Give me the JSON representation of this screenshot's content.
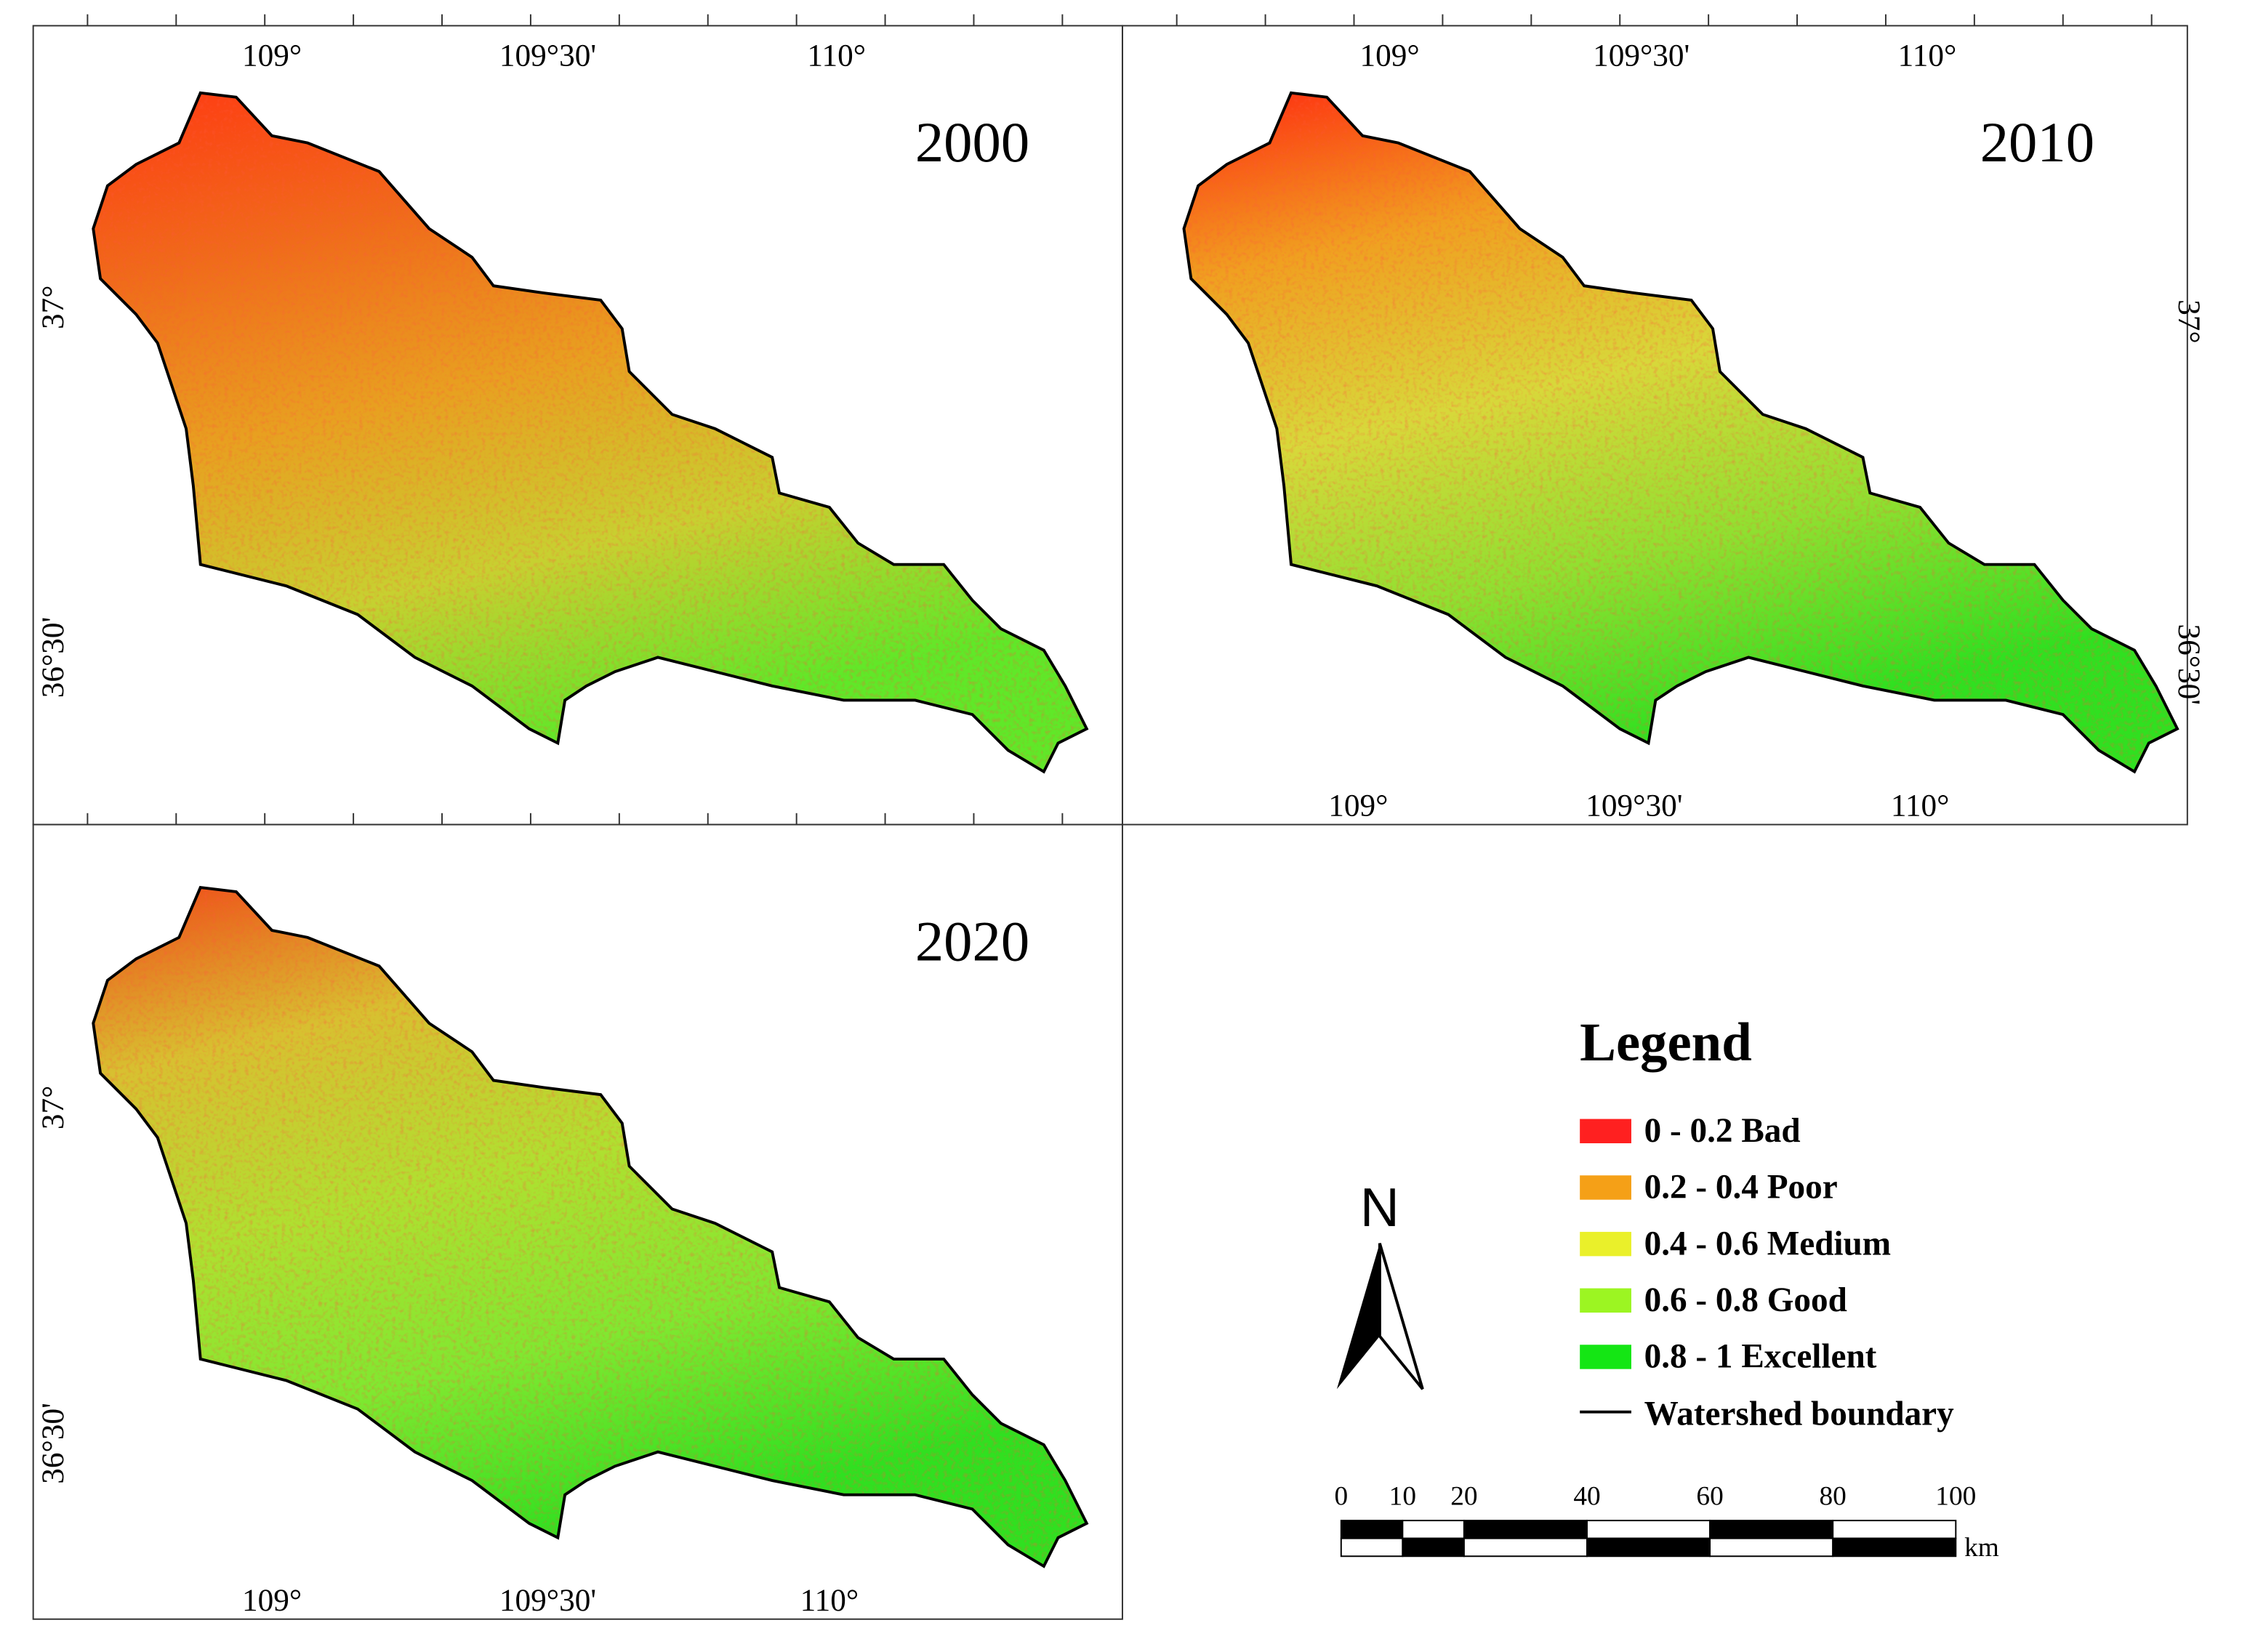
{
  "panels": [
    {
      "year": "2000",
      "top_labels": [
        "109°",
        "109°30'",
        "110°"
      ],
      "bottom_labels": [],
      "left_labels": [
        "37°",
        "36°30'"
      ],
      "right_labels": [],
      "colors": [
        "#ff3a12",
        "#f06a1a",
        "#e8a020",
        "#c8d030",
        "#60e828"
      ]
    },
    {
      "year": "2010",
      "top_labels": [
        "109°",
        "109°30'",
        "110°"
      ],
      "bottom_labels": [
        "109°",
        "109°30'",
        "110°"
      ],
      "left_labels": [],
      "right_labels": [
        "37°",
        "36°30'"
      ],
      "colors": [
        "#ff2a10",
        "#f0a020",
        "#d8d83a",
        "#90e030",
        "#30e020"
      ]
    },
    {
      "year": "2020",
      "top_labels": [],
      "bottom_labels": [
        "109°",
        "109°30'",
        "110°"
      ],
      "left_labels": [
        "37°",
        "36°30'"
      ],
      "right_labels": [],
      "colors": [
        "#f04a18",
        "#d8c030",
        "#b0e030",
        "#80e830",
        "#30e020"
      ]
    }
  ],
  "legend": {
    "title": "Legend",
    "items": [
      {
        "label": "0 - 0.2  Bad",
        "color": "#ff2020"
      },
      {
        "label": "0.2 - 0.4  Poor",
        "color": "#f5a017"
      },
      {
        "label": "0.4 - 0.6  Medium",
        "color": "#eaf02a"
      },
      {
        "label": "0.6 - 0.8  Good",
        "color": "#9cf522"
      },
      {
        "label": "0.8 - 1  Excellent",
        "color": "#14e614"
      }
    ],
    "boundary": "Watershed boundary"
  },
  "north": "N",
  "scale": {
    "ticks": [
      0,
      10,
      20,
      40,
      60,
      80,
      100
    ],
    "unit": "km"
  }
}
